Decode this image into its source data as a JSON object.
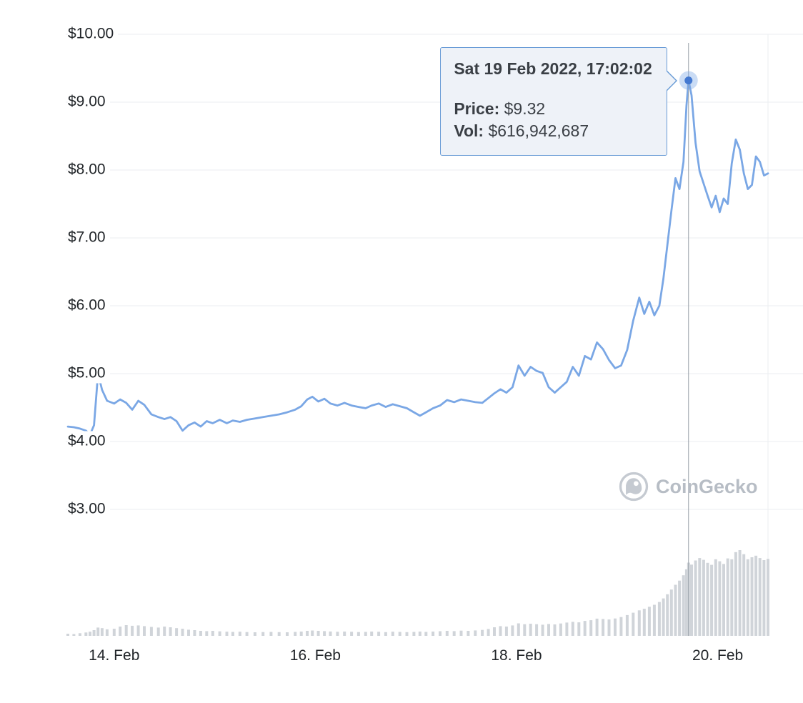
{
  "page": {
    "background": "#ffffff"
  },
  "chart_data": {
    "type": "line+bar",
    "title": "",
    "legend": "none",
    "grid": "horizontal",
    "x_axis": {
      "range_days": [
        13.54,
        20.5
      ],
      "ticks": [
        {
          "day": 14,
          "label": "14. Feb"
        },
        {
          "day": 16,
          "label": "16. Feb"
        },
        {
          "day": 18,
          "label": "18. Feb"
        },
        {
          "day": 20,
          "label": "20. Feb"
        }
      ]
    },
    "y_axis": {
      "range": [
        3,
        10
      ],
      "ticks": [
        {
          "value": 10,
          "label": "$10.00"
        },
        {
          "value": 9,
          "label": "$9.00"
        },
        {
          "value": 8,
          "label": "$8.00"
        },
        {
          "value": 7,
          "label": "$7.00"
        },
        {
          "value": 6,
          "label": "$6.00"
        },
        {
          "value": 5,
          "label": "$5.00"
        },
        {
          "value": 4,
          "label": "$4.00"
        },
        {
          "value": 3,
          "label": "$3.00"
        }
      ]
    },
    "price_series": {
      "name": "Price (USD)",
      "color": "#7aa7e5",
      "points": [
        [
          13.54,
          4.22
        ],
        [
          13.6,
          4.21
        ],
        [
          13.66,
          4.19
        ],
        [
          13.72,
          4.16
        ],
        [
          13.76,
          4.1
        ],
        [
          13.8,
          4.24
        ],
        [
          13.84,
          5.0
        ],
        [
          13.88,
          4.76
        ],
        [
          13.93,
          4.6
        ],
        [
          14.0,
          4.56
        ],
        [
          14.06,
          4.62
        ],
        [
          14.12,
          4.57
        ],
        [
          14.18,
          4.47
        ],
        [
          14.24,
          4.6
        ],
        [
          14.3,
          4.54
        ],
        [
          14.37,
          4.4
        ],
        [
          14.44,
          4.36
        ],
        [
          14.5,
          4.33
        ],
        [
          14.56,
          4.36
        ],
        [
          14.62,
          4.3
        ],
        [
          14.68,
          4.16
        ],
        [
          14.74,
          4.24
        ],
        [
          14.8,
          4.28
        ],
        [
          14.86,
          4.22
        ],
        [
          14.92,
          4.3
        ],
        [
          14.98,
          4.27
        ],
        [
          15.05,
          4.32
        ],
        [
          15.12,
          4.27
        ],
        [
          15.18,
          4.31
        ],
        [
          15.25,
          4.29
        ],
        [
          15.32,
          4.32
        ],
        [
          15.4,
          4.34
        ],
        [
          15.48,
          4.36
        ],
        [
          15.56,
          4.38
        ],
        [
          15.64,
          4.4
        ],
        [
          15.72,
          4.43
        ],
        [
          15.8,
          4.47
        ],
        [
          15.86,
          4.52
        ],
        [
          15.92,
          4.62
        ],
        [
          15.97,
          4.66
        ],
        [
          16.03,
          4.59
        ],
        [
          16.09,
          4.63
        ],
        [
          16.15,
          4.56
        ],
        [
          16.22,
          4.53
        ],
        [
          16.29,
          4.57
        ],
        [
          16.36,
          4.53
        ],
        [
          16.43,
          4.51
        ],
        [
          16.5,
          4.49
        ],
        [
          16.56,
          4.53
        ],
        [
          16.63,
          4.56
        ],
        [
          16.7,
          4.51
        ],
        [
          16.77,
          4.55
        ],
        [
          16.84,
          4.52
        ],
        [
          16.91,
          4.49
        ],
        [
          16.98,
          4.43
        ],
        [
          17.04,
          4.38
        ],
        [
          17.1,
          4.43
        ],
        [
          17.17,
          4.49
        ],
        [
          17.24,
          4.53
        ],
        [
          17.31,
          4.61
        ],
        [
          17.38,
          4.58
        ],
        [
          17.45,
          4.62
        ],
        [
          17.52,
          4.6
        ],
        [
          17.59,
          4.58
        ],
        [
          17.66,
          4.57
        ],
        [
          17.72,
          4.64
        ],
        [
          17.78,
          4.71
        ],
        [
          17.84,
          4.77
        ],
        [
          17.9,
          4.72
        ],
        [
          17.96,
          4.8
        ],
        [
          18.02,
          5.12
        ],
        [
          18.08,
          4.97
        ],
        [
          18.14,
          5.1
        ],
        [
          18.2,
          5.04
        ],
        [
          18.26,
          5.01
        ],
        [
          18.32,
          4.8
        ],
        [
          18.38,
          4.72
        ],
        [
          18.44,
          4.8
        ],
        [
          18.5,
          4.88
        ],
        [
          18.56,
          5.1
        ],
        [
          18.62,
          4.97
        ],
        [
          18.68,
          5.26
        ],
        [
          18.74,
          5.21
        ],
        [
          18.8,
          5.46
        ],
        [
          18.86,
          5.36
        ],
        [
          18.92,
          5.2
        ],
        [
          18.98,
          5.08
        ],
        [
          19.04,
          5.12
        ],
        [
          19.1,
          5.35
        ],
        [
          19.16,
          5.78
        ],
        [
          19.22,
          6.12
        ],
        [
          19.27,
          5.88
        ],
        [
          19.32,
          6.06
        ],
        [
          19.37,
          5.86
        ],
        [
          19.42,
          6.0
        ],
        [
          19.46,
          6.4
        ],
        [
          19.5,
          6.9
        ],
        [
          19.54,
          7.4
        ],
        [
          19.58,
          7.88
        ],
        [
          19.62,
          7.72
        ],
        [
          19.66,
          8.12
        ],
        [
          19.69,
          8.95
        ],
        [
          19.71,
          9.32
        ],
        [
          19.74,
          9.1
        ],
        [
          19.78,
          8.4
        ],
        [
          19.82,
          7.98
        ],
        [
          19.86,
          7.8
        ],
        [
          19.9,
          7.62
        ],
        [
          19.94,
          7.45
        ],
        [
          19.98,
          7.62
        ],
        [
          20.02,
          7.38
        ],
        [
          20.06,
          7.58
        ],
        [
          20.1,
          7.5
        ],
        [
          20.14,
          8.1
        ],
        [
          20.18,
          8.45
        ],
        [
          20.22,
          8.3
        ],
        [
          20.26,
          7.95
        ],
        [
          20.3,
          7.72
        ],
        [
          20.34,
          7.78
        ],
        [
          20.38,
          8.2
        ],
        [
          20.42,
          8.12
        ],
        [
          20.46,
          7.92
        ],
        [
          20.5,
          7.95
        ]
      ]
    },
    "volume_series": {
      "name": "Volume",
      "unit": "USD millions (estimated)",
      "color": "#d0d4d9",
      "points": [
        [
          13.54,
          18
        ],
        [
          13.6,
          15
        ],
        [
          13.66,
          22
        ],
        [
          13.72,
          28
        ],
        [
          13.76,
          35
        ],
        [
          13.8,
          48
        ],
        [
          13.84,
          70
        ],
        [
          13.88,
          65
        ],
        [
          13.93,
          55
        ],
        [
          14.0,
          60
        ],
        [
          14.06,
          78
        ],
        [
          14.12,
          90
        ],
        [
          14.18,
          85
        ],
        [
          14.24,
          88
        ],
        [
          14.3,
          82
        ],
        [
          14.37,
          75
        ],
        [
          14.44,
          70
        ],
        [
          14.5,
          78
        ],
        [
          14.56,
          72
        ],
        [
          14.62,
          65
        ],
        [
          14.68,
          60
        ],
        [
          14.74,
          52
        ],
        [
          14.8,
          48
        ],
        [
          14.86,
          42
        ],
        [
          14.92,
          40
        ],
        [
          14.98,
          42
        ],
        [
          15.05,
          38
        ],
        [
          15.12,
          35
        ],
        [
          15.18,
          33
        ],
        [
          15.25,
          35
        ],
        [
          15.32,
          32
        ],
        [
          15.4,
          30
        ],
        [
          15.48,
          32
        ],
        [
          15.56,
          33
        ],
        [
          15.64,
          31
        ],
        [
          15.72,
          30
        ],
        [
          15.8,
          33
        ],
        [
          15.86,
          36
        ],
        [
          15.92,
          42
        ],
        [
          15.97,
          45
        ],
        [
          16.03,
          42
        ],
        [
          16.09,
          40
        ],
        [
          16.15,
          37
        ],
        [
          16.22,
          34
        ],
        [
          16.29,
          36
        ],
        [
          16.36,
          34
        ],
        [
          16.43,
          32
        ],
        [
          16.5,
          33
        ],
        [
          16.56,
          36
        ],
        [
          16.63,
          34
        ],
        [
          16.7,
          31
        ],
        [
          16.77,
          35
        ],
        [
          16.84,
          33
        ],
        [
          16.91,
          31
        ],
        [
          16.98,
          33
        ],
        [
          17.04,
          36
        ],
        [
          17.1,
          33
        ],
        [
          17.17,
          36
        ],
        [
          17.24,
          39
        ],
        [
          17.31,
          42
        ],
        [
          17.38,
          40
        ],
        [
          17.45,
          44
        ],
        [
          17.52,
          42
        ],
        [
          17.59,
          46
        ],
        [
          17.66,
          50
        ],
        [
          17.72,
          58
        ],
        [
          17.78,
          72
        ],
        [
          17.84,
          82
        ],
        [
          17.9,
          78
        ],
        [
          17.96,
          88
        ],
        [
          18.02,
          105
        ],
        [
          18.08,
          98
        ],
        [
          18.14,
          102
        ],
        [
          18.2,
          98
        ],
        [
          18.26,
          94
        ],
        [
          18.32,
          100
        ],
        [
          18.38,
          96
        ],
        [
          18.44,
          104
        ],
        [
          18.5,
          112
        ],
        [
          18.56,
          118
        ],
        [
          18.62,
          114
        ],
        [
          18.68,
          126
        ],
        [
          18.74,
          132
        ],
        [
          18.8,
          145
        ],
        [
          18.86,
          142
        ],
        [
          18.92,
          138
        ],
        [
          18.98,
          146
        ],
        [
          19.04,
          158
        ],
        [
          19.1,
          175
        ],
        [
          19.16,
          195
        ],
        [
          19.22,
          215
        ],
        [
          19.27,
          228
        ],
        [
          19.32,
          245
        ],
        [
          19.37,
          262
        ],
        [
          19.42,
          285
        ],
        [
          19.46,
          315
        ],
        [
          19.5,
          350
        ],
        [
          19.54,
          390
        ],
        [
          19.58,
          430
        ],
        [
          19.62,
          465
        ],
        [
          19.66,
          510
        ],
        [
          19.69,
          560
        ],
        [
          19.71,
          617
        ],
        [
          19.74,
          600
        ],
        [
          19.78,
          635
        ],
        [
          19.82,
          655
        ],
        [
          19.86,
          640
        ],
        [
          19.9,
          615
        ],
        [
          19.94,
          598
        ],
        [
          19.98,
          645
        ],
        [
          20.02,
          628
        ],
        [
          20.06,
          605
        ],
        [
          20.1,
          652
        ],
        [
          20.14,
          645
        ],
        [
          20.18,
          705
        ],
        [
          20.22,
          722
        ],
        [
          20.26,
          688
        ],
        [
          20.3,
          645
        ],
        [
          20.34,
          662
        ],
        [
          20.38,
          675
        ],
        [
          20.42,
          655
        ],
        [
          20.46,
          638
        ],
        [
          20.5,
          648
        ]
      ]
    },
    "highlight": {
      "day": 19.71,
      "price": 9.32
    },
    "tooltip": {
      "timestamp": "Sat 19 Feb 2022, 17:02:02",
      "price_label": "Price:",
      "price_value": "$9.32",
      "vol_label": "Vol:",
      "vol_value": "$616,942,687"
    },
    "watermark": {
      "text": "CoinGecko"
    }
  }
}
